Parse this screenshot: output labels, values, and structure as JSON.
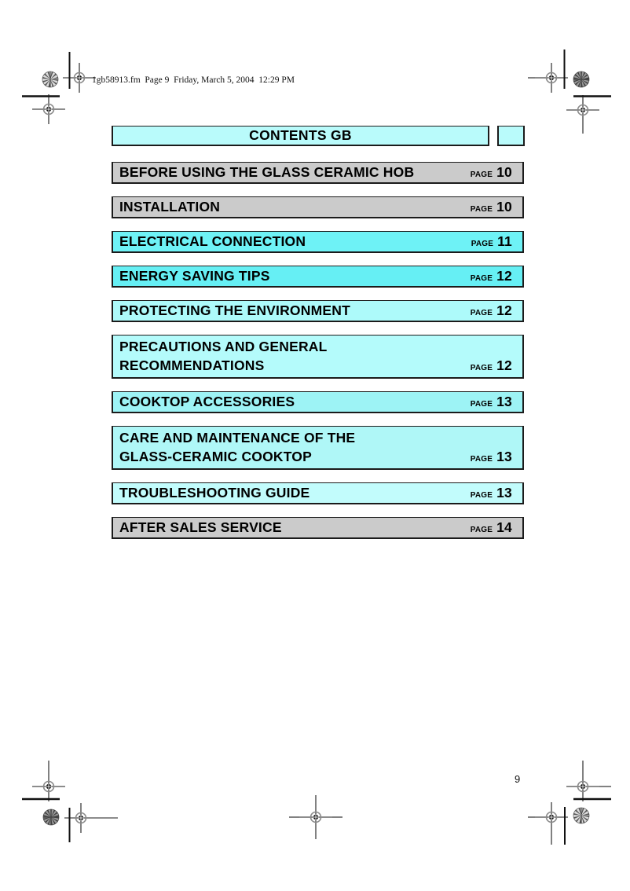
{
  "header": {
    "text": "1gb58913.fm  Page 9  Friday, March 5, 2004  12:29 PM"
  },
  "contents_bar": {
    "title": "CONTENTS GB"
  },
  "toc": {
    "page_label": "PAGE",
    "rows": [
      {
        "lines": [
          "BEFORE USING THE GLASS CERAMIC HOB"
        ],
        "page_number": "10",
        "bg": "#cbcbcb"
      },
      {
        "lines": [
          "INSTALLATION"
        ],
        "page_number": "10",
        "bg": "#cbcbcb"
      },
      {
        "lines": [
          "ELECTRICAL CONNECTION"
        ],
        "page_number": "11",
        "bg": "#6ef2f6"
      },
      {
        "lines": [
          "ENERGY SAVING TIPS"
        ],
        "page_number": "12",
        "bg": "#66eff4"
      },
      {
        "lines": [
          "PROTECTING THE ENVIRONMENT"
        ],
        "page_number": "12",
        "bg": "#adfafa"
      },
      {
        "lines": [
          "PRECAUTIONS AND GENERAL",
          "RECOMMENDATIONS"
        ],
        "page_number": "12",
        "bg": "#b4fbfb"
      },
      {
        "lines": [
          "COOKTOP ACCESSORIES"
        ],
        "page_number": "13",
        "bg": "#9df3f5"
      },
      {
        "lines": [
          "CARE AND MAINTENANCE OF THE",
          "GLASS-CERAMIC COOKTOP"
        ],
        "page_number": "13",
        "bg": "#aff7f7"
      },
      {
        "lines": [
          "TROUBLESHOOTING GUIDE"
        ],
        "page_number": "13",
        "bg": "#c2fcfc"
      },
      {
        "lines": [
          "AFTER SALES SERVICE"
        ],
        "page_number": "14",
        "bg": "#cbcbcb"
      }
    ]
  },
  "footer": {
    "page_number": "9"
  },
  "colors": {
    "header_bar_bg": "#b9fbfb",
    "row_border": "#1b1b1b"
  }
}
